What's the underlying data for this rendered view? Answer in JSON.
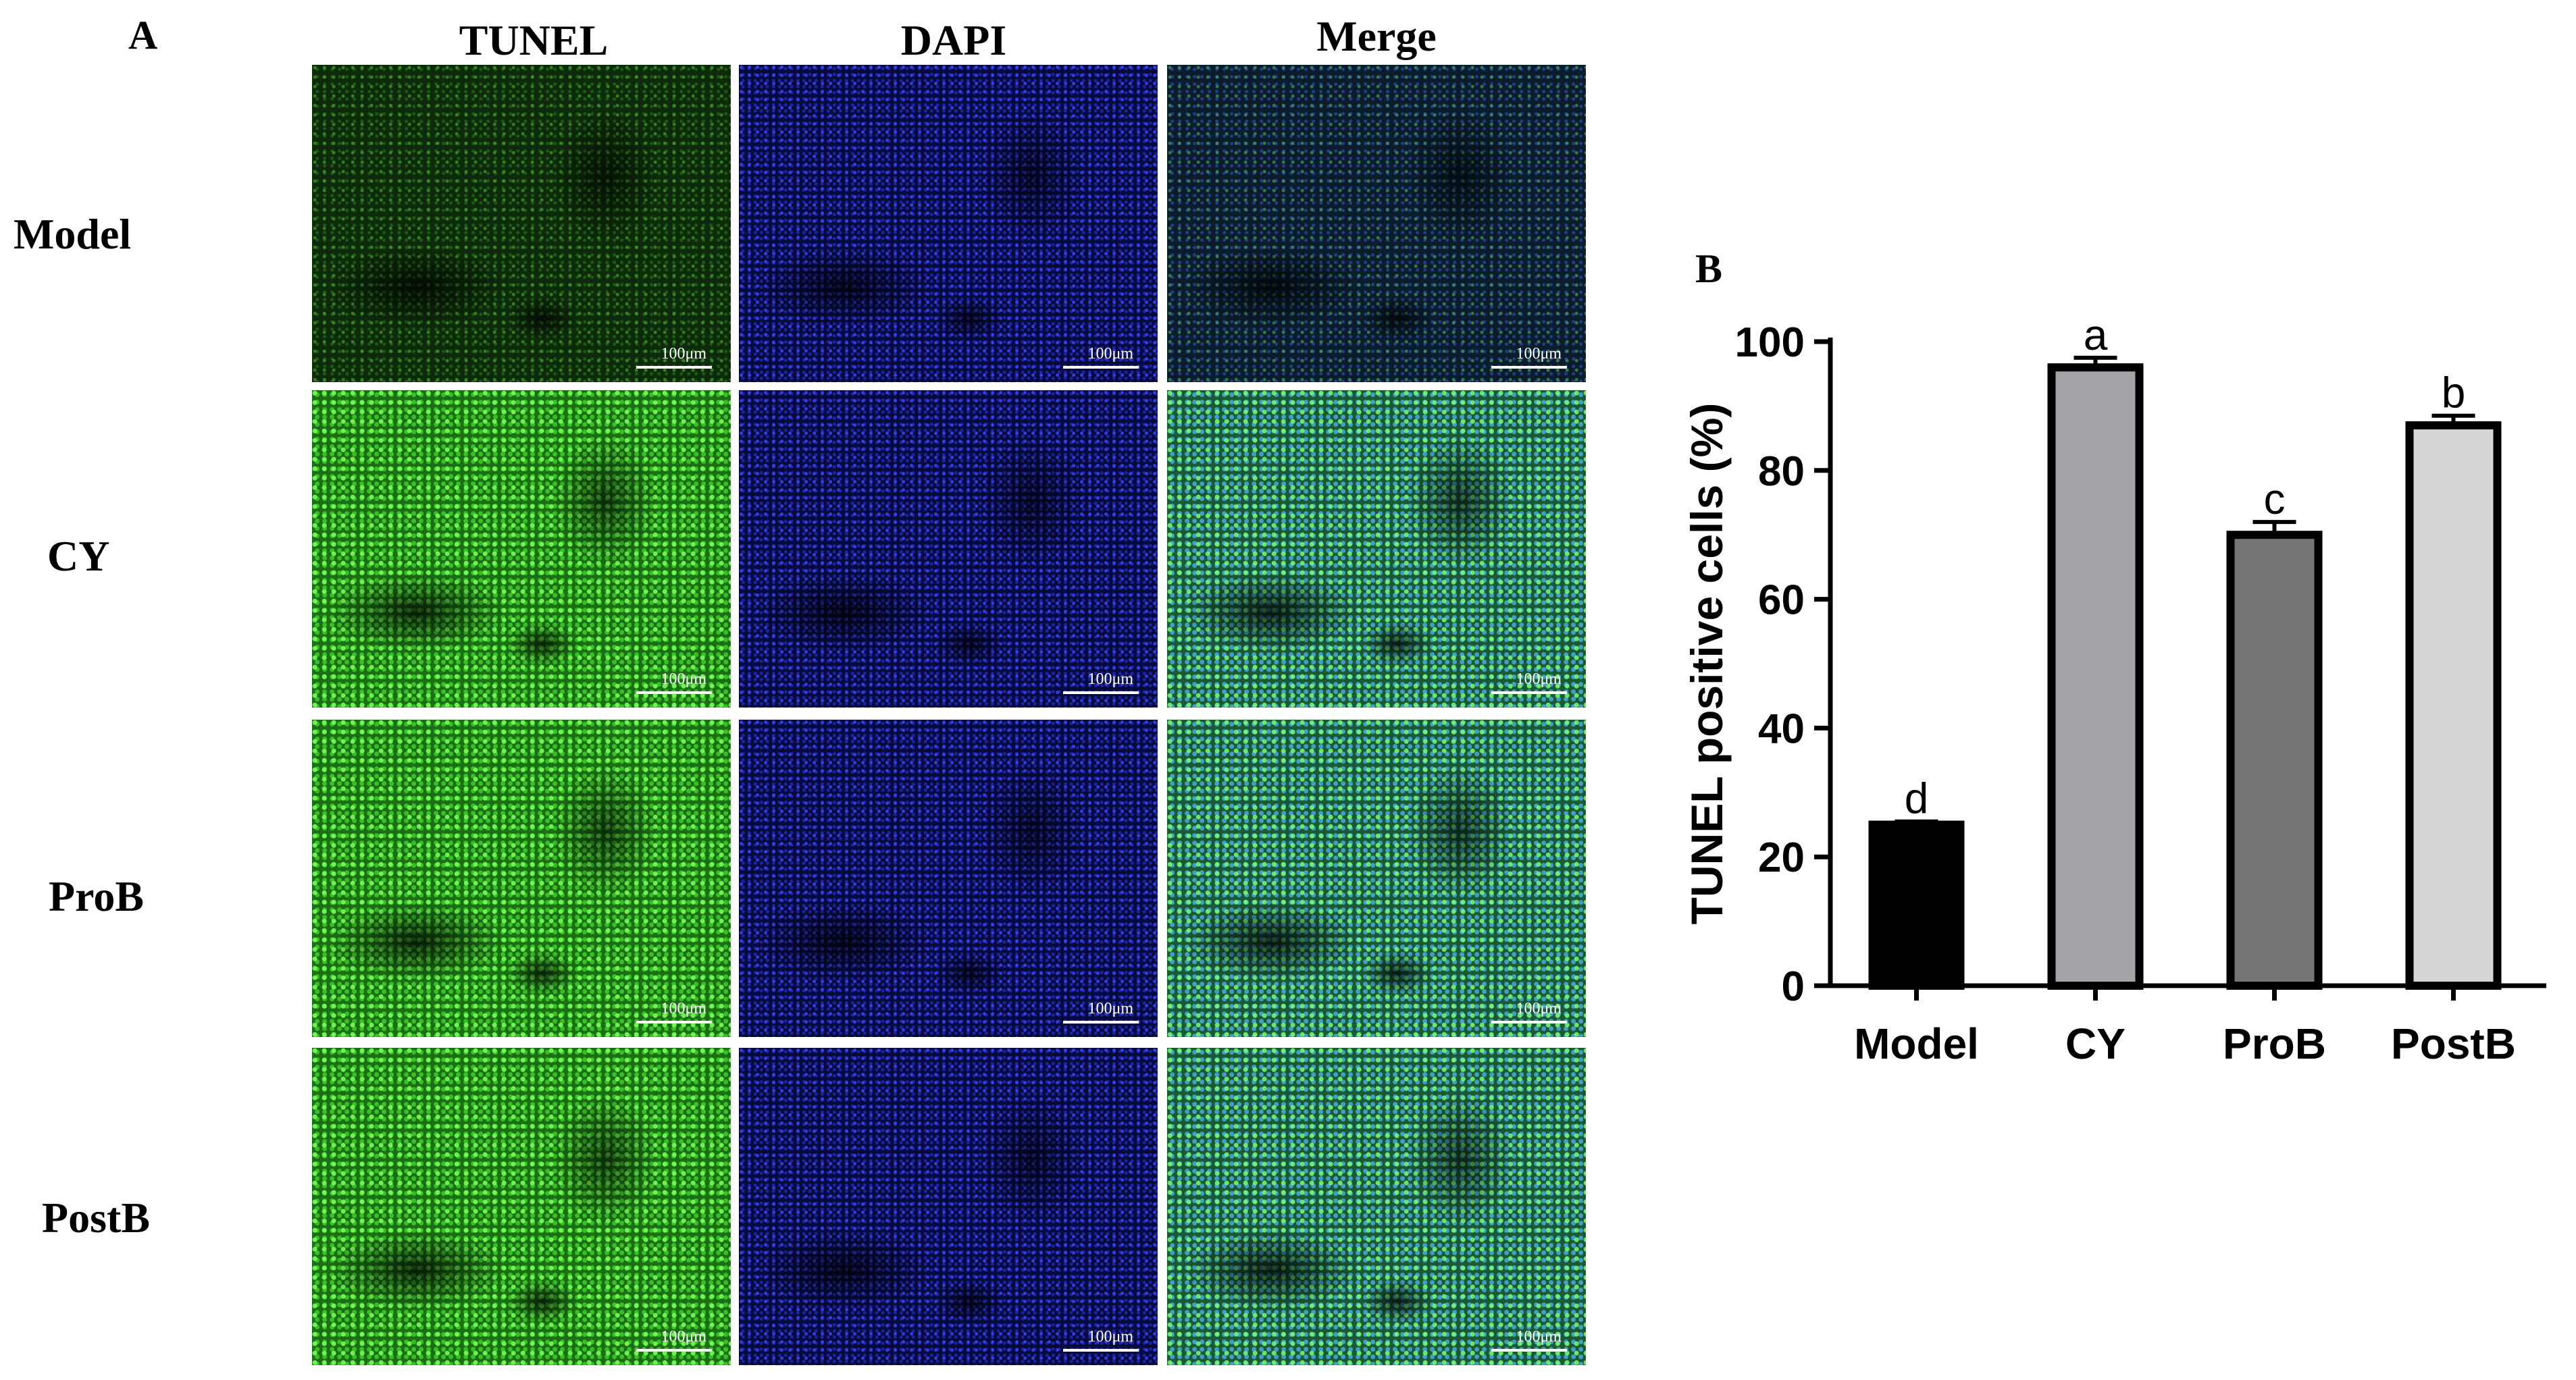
{
  "panel_a": {
    "letter": "A",
    "columns": [
      "TUNEL",
      "DAPI",
      "Merge"
    ],
    "rows": [
      "Model",
      "CY",
      "ProB",
      "PostB"
    ],
    "scale_label": "100μm",
    "stain_colors": {
      "TUNEL": "#3ecf2c",
      "DAPI": "#2a33d8",
      "Merge": "#4bd29a"
    }
  },
  "panel_b": {
    "letter": "B"
  },
  "chart_data": {
    "type": "bar",
    "title": "",
    "xlabel": "",
    "ylabel": "TUNEL positive cells (%)",
    "ylim": [
      0,
      100
    ],
    "yticks": [
      "0",
      "20",
      "40",
      "60",
      "80",
      "100"
    ],
    "categories": [
      "Model",
      "CY",
      "ProB",
      "PostB"
    ],
    "values": [
      25,
      96,
      70,
      87
    ],
    "errors": [
      0.5,
      1.5,
      2.0,
      1.5
    ],
    "significance": [
      "d",
      "a",
      "c",
      "b"
    ],
    "bar_colors": [
      "#000000",
      "#a3a3a8",
      "#767678",
      "#d6d6d6"
    ],
    "grid": false
  }
}
